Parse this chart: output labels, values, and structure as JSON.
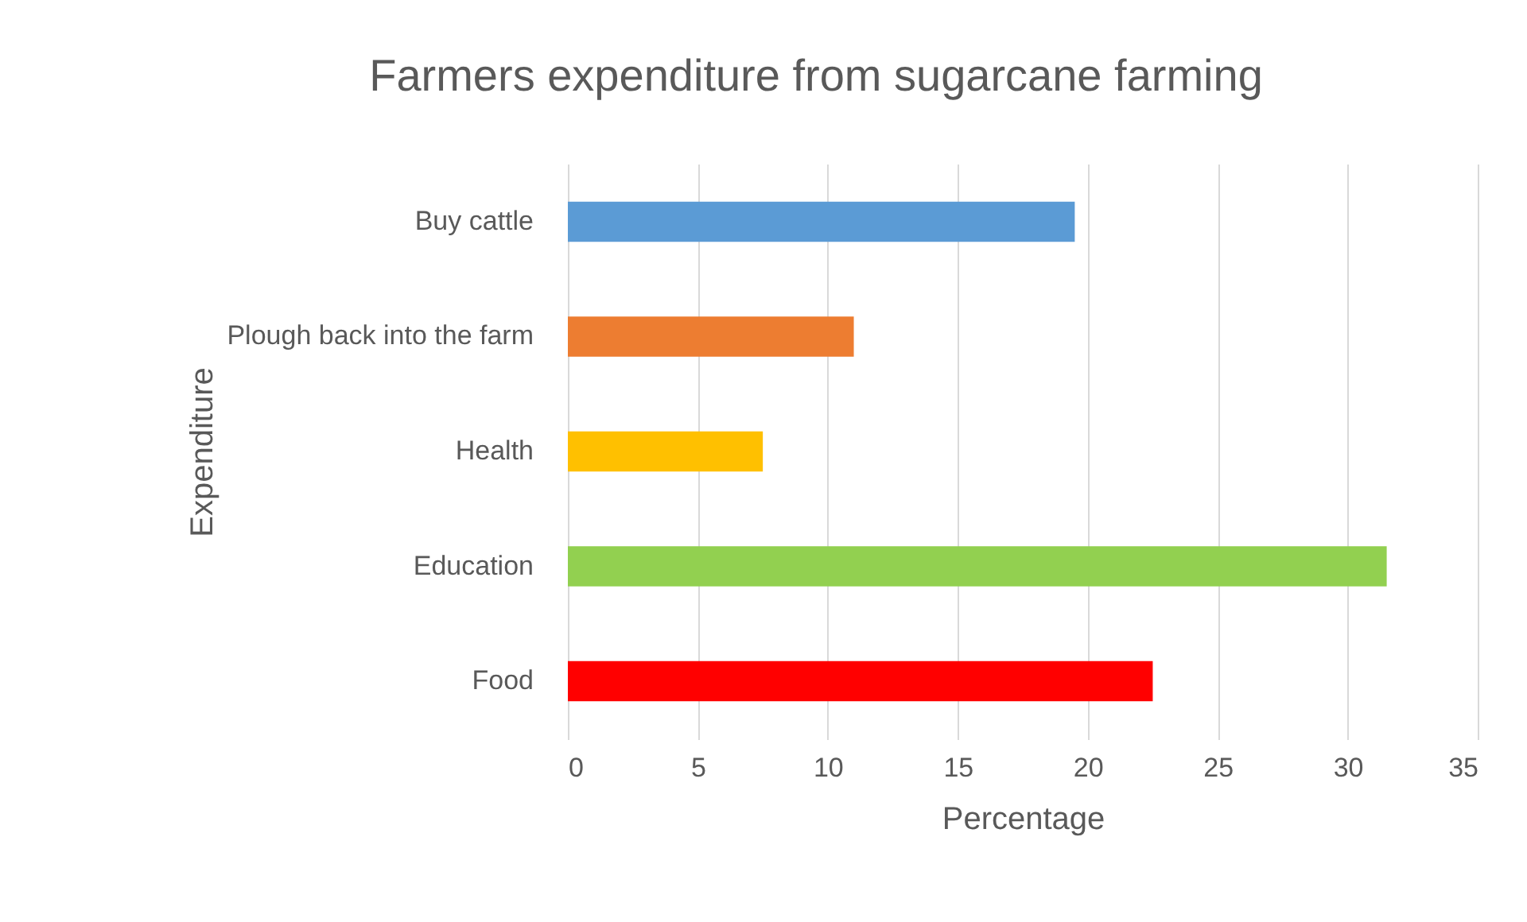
{
  "chart_data": {
    "type": "bar",
    "orientation": "horizontal",
    "title": "Farmers expenditure from sugarcane farming",
    "xlabel": "Percentage",
    "ylabel": "Expenditure",
    "categories": [
      "Buy cattle",
      "Plough back into the farm",
      "Health",
      "Education",
      "Food"
    ],
    "values": [
      19.5,
      11,
      7.5,
      31.5,
      22.5
    ],
    "colors": [
      "#5b9bd5",
      "#ed7d31",
      "#ffc000",
      "#92d050",
      "#ff0000"
    ],
    "xlim": [
      0,
      35
    ],
    "xticks": [
      0,
      5,
      10,
      15,
      20,
      25,
      30,
      35
    ],
    "grid": "x"
  }
}
